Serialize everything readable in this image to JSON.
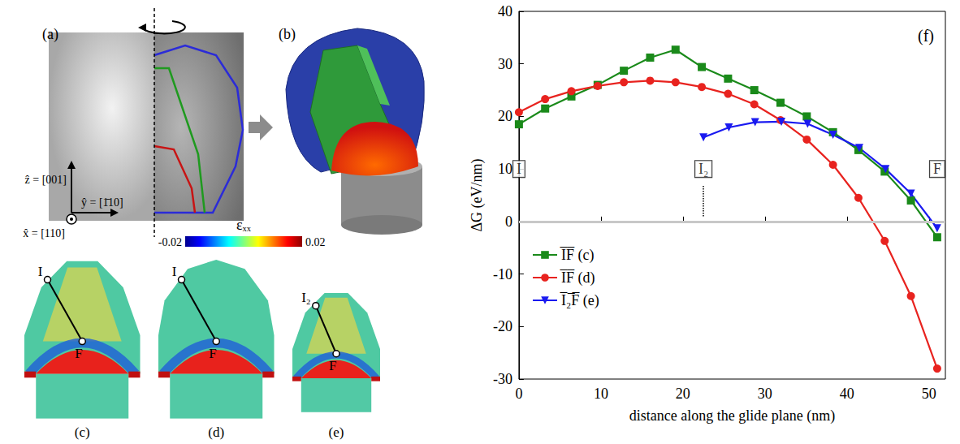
{
  "panels": {
    "a": {
      "label": "(a)",
      "axes": {
        "z": "ẑ = [001]",
        "y": "ŷ = [1̄10]",
        "x": "x̂ = [110]"
      }
    },
    "b": {
      "label": "(b)"
    },
    "colorbar": {
      "label": "εₓₓ",
      "range": [
        -0.02,
        0.02
      ],
      "ticks": [
        -0.02,
        0.02
      ]
    },
    "c": {
      "label": "(c)",
      "points": [
        "I",
        "F"
      ]
    },
    "d": {
      "label": "(d)",
      "points": [
        "I",
        "F"
      ]
    },
    "e": {
      "label": "(e)",
      "points": [
        "I₂",
        "F"
      ]
    }
  },
  "chart_data": {
    "type": "line",
    "panel_label": "(f)",
    "x_label": "distance along the glide plane (nm)",
    "y_label": "ΔG (eV/nm)",
    "xlim": [
      0,
      52
    ],
    "xticks": [
      0,
      10,
      20,
      30,
      40,
      50
    ],
    "ylim": [
      -30,
      40
    ],
    "yticks": [
      -30,
      -20,
      -10,
      0,
      10,
      20,
      30,
      40
    ],
    "grid": false,
    "legend": "lower left",
    "reference_line": 0,
    "series": [
      {
        "name": "I̅F̅ (c)",
        "color": "#1a8a1a",
        "marker": "square",
        "x": [
          0,
          3.2,
          6.4,
          9.6,
          12.8,
          16,
          19.1,
          22.3,
          25.5,
          28.7,
          31.9,
          35.1,
          38.3,
          41.4,
          44.6,
          47.8,
          51
        ],
        "values": [
          18.5,
          21.5,
          23.8,
          26,
          28.7,
          31.2,
          32.7,
          29.4,
          27.2,
          25,
          22.6,
          20,
          17,
          13.6,
          9.5,
          4,
          -3
        ]
      },
      {
        "name": "I̅F̅ (d)",
        "color": "#e8231f",
        "marker": "circle",
        "x": [
          0,
          3.2,
          6.4,
          9.6,
          12.8,
          16,
          19.1,
          22.3,
          25.5,
          28.7,
          31.9,
          35.1,
          38.3,
          41.4,
          44.6,
          47.8,
          51
        ],
        "values": [
          20.8,
          23.3,
          24.8,
          25.8,
          26.5,
          26.8,
          26.5,
          25.6,
          24.3,
          22.3,
          19.3,
          15.6,
          10.8,
          4.5,
          -3.7,
          -14.2,
          -28
        ]
      },
      {
        "name": "I̅₂̅F̅ (e)",
        "color": "#1a1af0",
        "marker": "triangle_down",
        "x": [
          22.5,
          25.6,
          28.8,
          32,
          35.2,
          38.3,
          41.5,
          44.7,
          47.8,
          51
        ],
        "values": [
          16,
          17.9,
          18.9,
          19,
          18.6,
          16.5,
          14,
          10,
          5.3,
          -1.3
        ]
      }
    ],
    "annotations": [
      {
        "text": "I",
        "x": 0,
        "y": 10
      },
      {
        "text": "I₂",
        "x": 22.5,
        "y": 10,
        "line_y": [
          1,
          7
        ]
      },
      {
        "text": "F",
        "x": 51,
        "y": 10
      }
    ]
  }
}
